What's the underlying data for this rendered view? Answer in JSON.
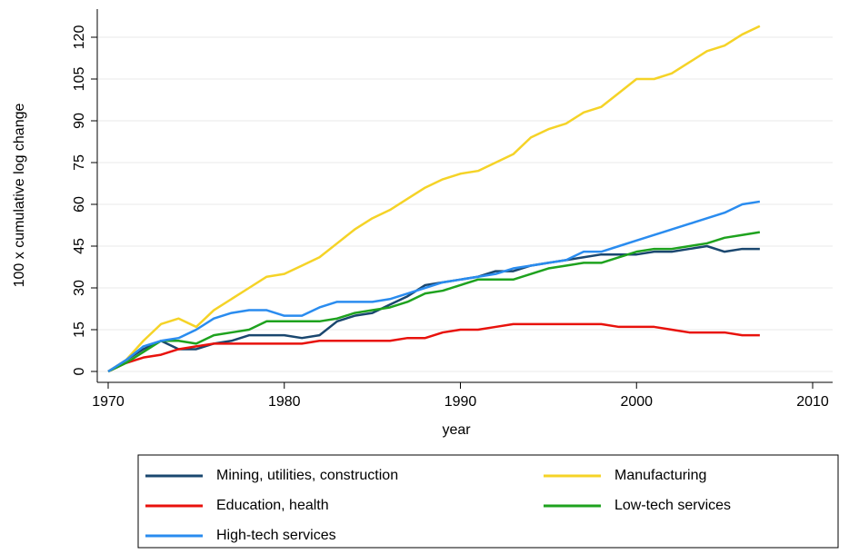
{
  "chart_data": {
    "type": "line",
    "x_label": "year",
    "y_label": "100 x cumulative log change",
    "x": [
      1970,
      1971,
      1972,
      1973,
      1974,
      1975,
      1976,
      1977,
      1978,
      1979,
      1980,
      1981,
      1982,
      1983,
      1984,
      1985,
      1986,
      1987,
      1988,
      1989,
      1990,
      1991,
      1992,
      1993,
      1994,
      1995,
      1996,
      1997,
      1998,
      1999,
      2000,
      2001,
      2002,
      2003,
      2004,
      2005,
      2006,
      2007
    ],
    "xlim": [
      1970,
      2010
    ],
    "xticks": [
      1970,
      1980,
      1990,
      2000,
      2010
    ],
    "ylim": [
      0,
      120
    ],
    "yticks": [
      0,
      15,
      30,
      45,
      60,
      75,
      90,
      105,
      120
    ],
    "grid": true,
    "legend": "bottom",
    "series": [
      {
        "name": "Mining, utilities, construction",
        "color": "#1a476f",
        "values": [
          0,
          4,
          8,
          11,
          8,
          8,
          10,
          11,
          13,
          13,
          13,
          12,
          13,
          18,
          20,
          21,
          24,
          27,
          31,
          32,
          33,
          34,
          36,
          36,
          38,
          39,
          40,
          41,
          42,
          42,
          42,
          43,
          43,
          44,
          45,
          43,
          44,
          44
        ]
      },
      {
        "name": "Manufacturing",
        "color": "#f5d327",
        "values": [
          0,
          4,
          11,
          17,
          19,
          16,
          22,
          26,
          30,
          34,
          35,
          38,
          41,
          46,
          51,
          55,
          58,
          62,
          66,
          69,
          71,
          72,
          75,
          78,
          84,
          87,
          89,
          93,
          95,
          100,
          105,
          105,
          107,
          111,
          115,
          117,
          121,
          124
        ]
      },
      {
        "name": "Education, health",
        "color": "#e8120c",
        "values": [
          0,
          3,
          5,
          6,
          8,
          9,
          10,
          10,
          10,
          10,
          10,
          10,
          11,
          11,
          11,
          11,
          11,
          12,
          12,
          14,
          15,
          15,
          16,
          17,
          17,
          17,
          17,
          17,
          17,
          16,
          16,
          16,
          15,
          14,
          14,
          14,
          13,
          13
        ]
      },
      {
        "name": "Low-tech services",
        "color": "#1ea21e",
        "values": [
          0,
          3,
          7,
          11,
          11,
          10,
          13,
          14,
          15,
          18,
          18,
          18,
          18,
          19,
          21,
          22,
          23,
          25,
          28,
          29,
          31,
          33,
          33,
          33,
          35,
          37,
          38,
          39,
          39,
          41,
          43,
          44,
          44,
          45,
          46,
          48,
          49,
          50
        ]
      },
      {
        "name": "High-tech services",
        "color": "#2a8cef",
        "values": [
          0,
          4,
          9,
          11,
          12,
          15,
          19,
          21,
          22,
          22,
          20,
          20,
          23,
          25,
          25,
          25,
          26,
          28,
          30,
          32,
          33,
          34,
          35,
          37,
          38,
          39,
          40,
          43,
          43,
          45,
          47,
          49,
          51,
          53,
          55,
          57,
          60,
          61
        ]
      }
    ]
  }
}
